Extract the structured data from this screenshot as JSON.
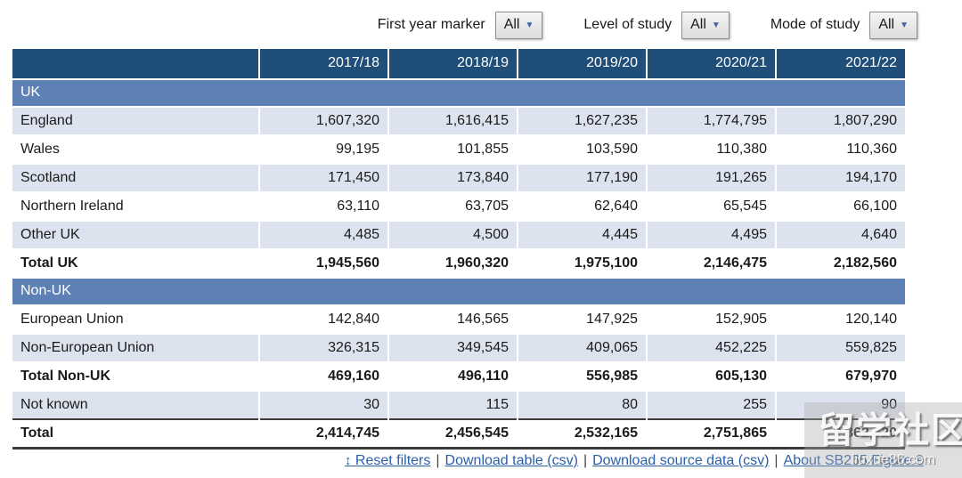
{
  "filters": [
    {
      "label": "First year marker",
      "value": "All"
    },
    {
      "label": "Level of study",
      "value": "All"
    },
    {
      "label": "Mode of study",
      "value": "All"
    }
  ],
  "table": {
    "columns": [
      "2017/18",
      "2018/19",
      "2019/20",
      "2020/21",
      "2021/22"
    ],
    "rows": [
      {
        "type": "section",
        "label": "UK"
      },
      {
        "type": "data",
        "shaded": true,
        "label": "England",
        "values": [
          "1,607,320",
          "1,616,415",
          "1,627,235",
          "1,774,795",
          "1,807,290"
        ]
      },
      {
        "type": "data",
        "shaded": false,
        "label": "Wales",
        "values": [
          "99,195",
          "101,855",
          "103,590",
          "110,380",
          "110,360"
        ]
      },
      {
        "type": "data",
        "shaded": true,
        "label": "Scotland",
        "values": [
          "171,450",
          "173,840",
          "177,190",
          "191,265",
          "194,170"
        ]
      },
      {
        "type": "data",
        "shaded": false,
        "label": "Northern Ireland",
        "values": [
          "63,110",
          "63,705",
          "62,640",
          "65,545",
          "66,100"
        ]
      },
      {
        "type": "data",
        "shaded": true,
        "label": "Other UK",
        "values": [
          "4,485",
          "4,500",
          "4,445",
          "4,495",
          "4,640"
        ]
      },
      {
        "type": "total",
        "label": "Total UK",
        "values": [
          "1,945,560",
          "1,960,320",
          "1,975,100",
          "2,146,475",
          "2,182,560"
        ]
      },
      {
        "type": "section",
        "label": "Non-UK"
      },
      {
        "type": "data",
        "shaded": false,
        "label": "European Union",
        "values": [
          "142,840",
          "146,565",
          "147,925",
          "152,905",
          "120,140"
        ]
      },
      {
        "type": "data",
        "shaded": true,
        "label": "Non-European Union",
        "values": [
          "326,315",
          "349,545",
          "409,065",
          "452,225",
          "559,825"
        ]
      },
      {
        "type": "total",
        "label": "Total Non-UK",
        "values": [
          "469,160",
          "496,110",
          "556,985",
          "605,130",
          "679,970"
        ]
      },
      {
        "type": "data",
        "shaded": true,
        "label": "Not known",
        "values": [
          "30",
          "115",
          "80",
          "255",
          "90"
        ]
      },
      {
        "type": "grand",
        "label": "Total",
        "values": [
          "2,414,745",
          "2,456,545",
          "2,532,165",
          "2,751,865",
          "2,862,620"
        ]
      }
    ]
  },
  "footer": {
    "reset_icon": "↕",
    "links": [
      "Reset filters",
      "Download table (csv)",
      "Download source data (csv)",
      "About SB265 Figure 9"
    ],
    "separator": "|"
  },
  "watermark": {
    "main": "留学社区",
    "sub": "liuxue86.com"
  },
  "colors": {
    "header_bg": "#1f4e79",
    "section_bg": "#5e81b5",
    "stripe_bg": "#dde3ee",
    "link": "#2a5fa8"
  }
}
